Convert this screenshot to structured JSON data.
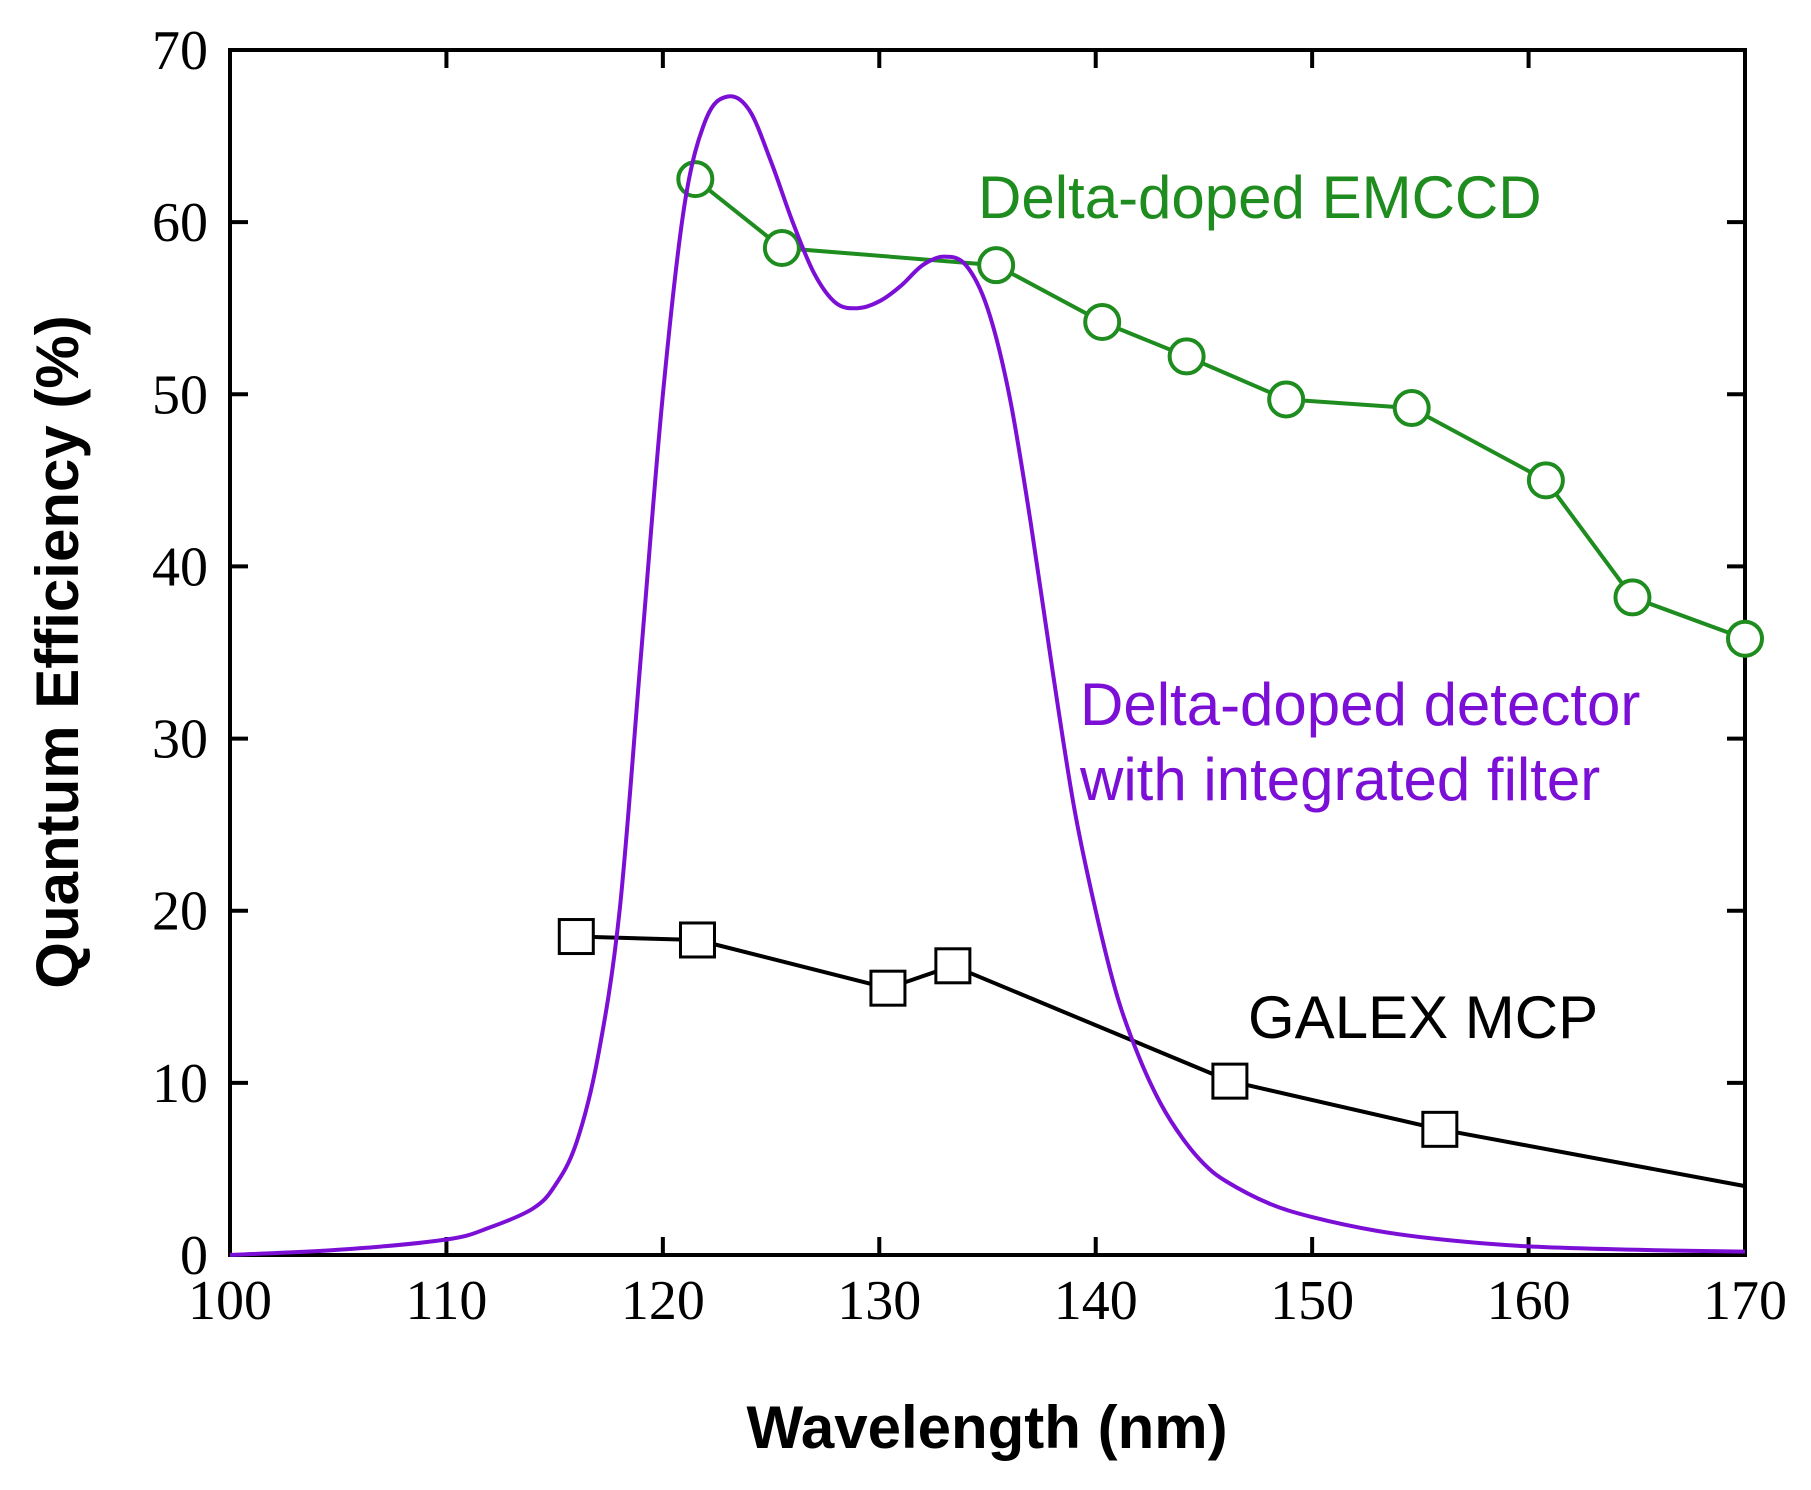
{
  "chart_data": {
    "type": "line",
    "title": "",
    "xlabel": "Wavelength (nm)",
    "ylabel": "Quantum Efficiency (%)",
    "xlim": [
      100,
      170
    ],
    "ylim": [
      0,
      70
    ],
    "xticks": [
      100,
      110,
      120,
      130,
      140,
      150,
      160,
      170
    ],
    "yticks": [
      0,
      10,
      20,
      30,
      40,
      50,
      60,
      70
    ],
    "grid": false,
    "series": [
      {
        "name": "Delta-doped EMCCD",
        "color": "#1e8c1e",
        "marker": "circle",
        "x": [
          121.5,
          125.5,
          135.4,
          140.3,
          144.2,
          148.8,
          154.6,
          160.8,
          164.8,
          170
        ],
        "y": [
          62.5,
          58.5,
          57.5,
          54.2,
          52.2,
          49.7,
          49.2,
          45.0,
          38.2,
          35.8
        ]
      },
      {
        "name": "Delta-doped detector with integrated filter",
        "color": "#7b0fd6",
        "marker": "none",
        "smooth": true,
        "x": [
          100,
          105,
          110,
          112,
          114,
          115,
          116,
          117,
          118,
          119,
          120,
          121,
          122,
          123,
          124,
          125,
          126,
          127,
          128,
          129,
          130,
          131,
          132,
          133,
          134,
          135,
          136,
          137,
          138,
          139,
          140,
          141,
          142,
          143,
          144,
          145,
          146,
          148,
          150,
          153,
          156,
          160,
          165,
          170
        ],
        "y": [
          0,
          0.3,
          0.9,
          1.6,
          2.7,
          4.0,
          6.5,
          11.5,
          20.0,
          35.0,
          50.0,
          61.0,
          66.0,
          67.3,
          66.5,
          63.5,
          60.0,
          57.0,
          55.3,
          55.0,
          55.4,
          56.3,
          57.5,
          58.0,
          57.5,
          55.0,
          50.0,
          42.5,
          34.0,
          26.0,
          20.0,
          15.0,
          11.5,
          8.8,
          6.8,
          5.3,
          4.3,
          3.0,
          2.2,
          1.4,
          0.9,
          0.5,
          0.3,
          0.2
        ]
      },
      {
        "name": "GALEX MCP",
        "color": "#000000",
        "marker": "square",
        "x": [
          116.0,
          121.6,
          130.4,
          133.4,
          146.2,
          155.9,
          170
        ],
        "y": [
          18.5,
          18.3,
          15.5,
          16.8,
          10.1,
          7.3,
          4.0
        ],
        "marker_mask": [
          true,
          true,
          true,
          true,
          true,
          true,
          false
        ]
      }
    ],
    "annotations": [
      {
        "id": "emccd",
        "lines": [
          "Delta-doped EMCCD"
        ],
        "color": "#1e8c1e"
      },
      {
        "id": "filter",
        "lines": [
          "Delta-doped detector",
          "with integrated filter"
        ],
        "color": "#7b0fd6"
      },
      {
        "id": "galex",
        "lines": [
          "GALEX MCP"
        ],
        "color": "#000000"
      }
    ]
  }
}
